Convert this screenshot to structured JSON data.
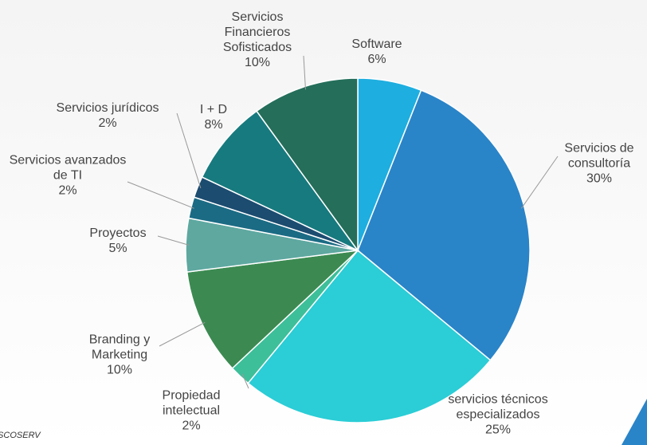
{
  "chart_data": {
    "type": "pie",
    "categories": [
      "Software",
      "Servicios de consultoría",
      "servicios técnicos especializados",
      "Propiedad intelectual",
      "Branding y Marketing",
      "Proyectos",
      "Servicios avanzados de TI",
      "Servicios jurídicos",
      "I + D",
      "Servicios Financieros Sofisticados"
    ],
    "values": [
      6,
      30,
      25,
      2,
      10,
      5,
      2,
      2,
      8,
      10
    ],
    "value_labels": [
      "6%",
      "30%",
      "25%",
      "2%",
      "10%",
      "5%",
      "2%",
      "2%",
      "8%",
      "10%"
    ],
    "colors": [
      "#1eaee0",
      "#2a84c8",
      "#2bcdd6",
      "#3dbf9a",
      "#3c8a52",
      "#5ea8a0",
      "#1b6b84",
      "#1c4c70",
      "#177a7e",
      "#246e5a"
    ],
    "source": "ISCOSERV"
  }
}
